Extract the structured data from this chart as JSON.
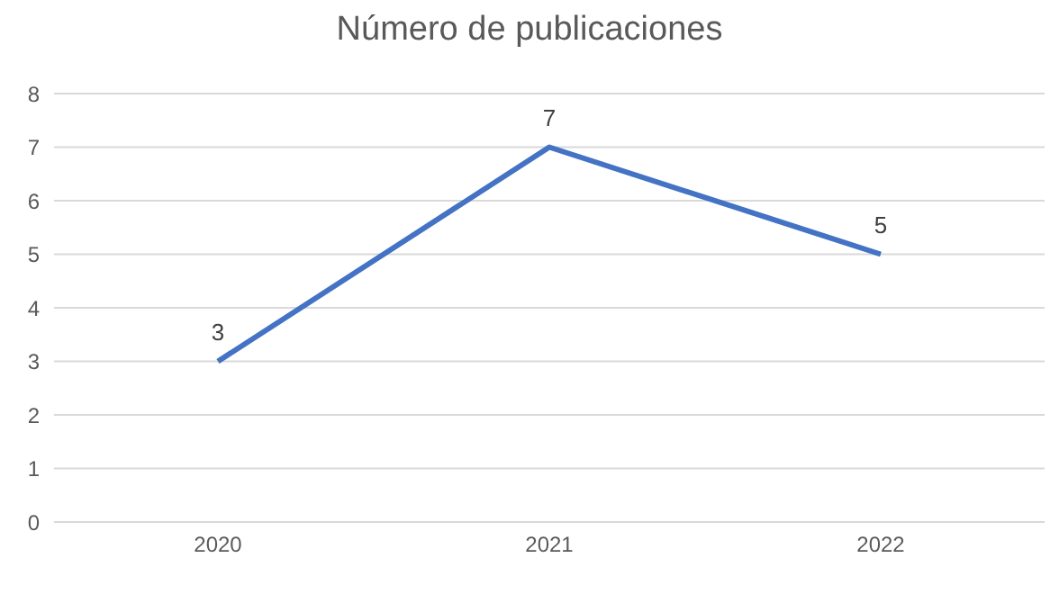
{
  "chart_data": {
    "type": "line",
    "title": "Número de publicaciones",
    "categories": [
      "2020",
      "2021",
      "2022"
    ],
    "series": [
      {
        "color": "#4472c4",
        "values": [
          3,
          7,
          5
        ]
      }
    ],
    "ylim": [
      0,
      8
    ],
    "yticks": [
      0,
      1,
      2,
      3,
      4,
      5,
      6,
      7,
      8
    ],
    "grid": "y",
    "data_labels": true,
    "marker": "none",
    "line_style": "solid",
    "legend": false
  }
}
